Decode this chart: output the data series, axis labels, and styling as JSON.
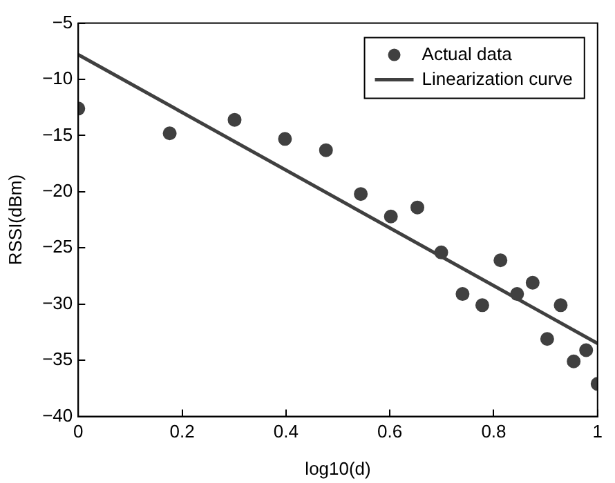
{
  "chart_data": {
    "type": "scatter",
    "xlabel": "log10(d)",
    "ylabel": "RSSI(dBm)",
    "xlim": [
      0,
      1
    ],
    "ylim": [
      -40,
      -5
    ],
    "xticks": [
      0,
      0.2,
      0.4,
      0.6,
      0.8,
      1
    ],
    "yticks": [
      {
        "value": -40,
        "label": "−40"
      },
      {
        "value": -35,
        "label": "−35"
      },
      {
        "value": -30,
        "label": "−30"
      },
      {
        "value": -25,
        "label": "−25"
      },
      {
        "value": -20,
        "label": "−20"
      },
      {
        "value": -15,
        "label": "−15"
      },
      {
        "value": -10,
        "label": "−10"
      },
      {
        "value": -5,
        "label": "−5"
      }
    ],
    "grid": false,
    "legend": "top right",
    "series": [
      {
        "name": "Actual data",
        "marker": "circle",
        "color": "#404040",
        "x": [
          0,
          0.176,
          0.301,
          0.398,
          0.477,
          0.544,
          0.602,
          0.653,
          0.699,
          0.74,
          0.778,
          0.813,
          0.845,
          0.875,
          0.903,
          0.929,
          0.954,
          0.978,
          1
        ],
        "values": [
          -12.6,
          -14.8,
          -13.6,
          -15.3,
          -16.3,
          -20.2,
          -22.2,
          -21.4,
          -25.4,
          -29.1,
          -30.1,
          -26.1,
          -29.1,
          -28.1,
          -33.1,
          -30.1,
          -35.1,
          -34.1,
          -37.1
        ]
      },
      {
        "name": "Linearization curve",
        "type": "line",
        "marker": "none",
        "color": "#404040",
        "line_style": "solid",
        "x": [
          0,
          1
        ],
        "values": [
          -7.8,
          -33.5
        ]
      }
    ]
  }
}
